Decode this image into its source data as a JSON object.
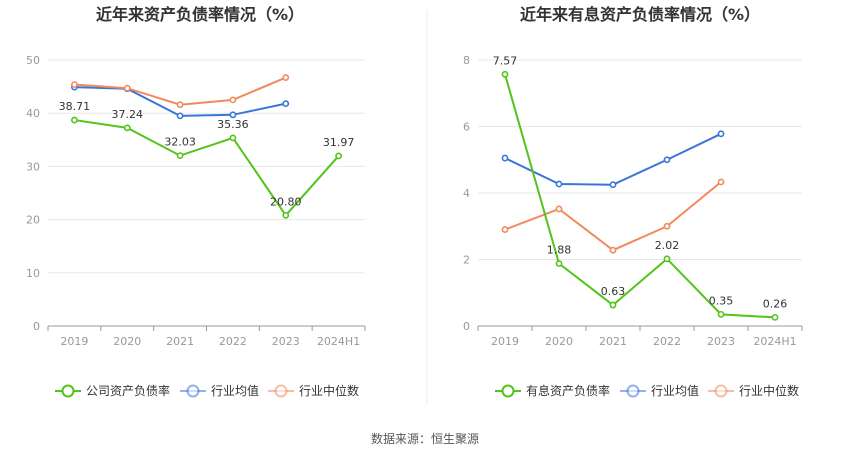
{
  "source_label": "数据来源：恒生聚源",
  "chart_data": [
    {
      "type": "line",
      "title": "近年来资产负债率情况（%）",
      "categories": [
        "2019",
        "2020",
        "2021",
        "2022",
        "2023",
        "2024H1"
      ],
      "ylim": [
        0,
        50
      ],
      "yticks": [
        0,
        10,
        20,
        30,
        40,
        50
      ],
      "grid": true,
      "legend_position": "bottom",
      "series": [
        {
          "name": "公司资产负债率",
          "color": "#52c41a",
          "labeled": true,
          "values": [
            38.71,
            37.24,
            32.03,
            35.36,
            20.8,
            31.97
          ],
          "labels": [
            "38.71",
            "37.24",
            "32.03",
            "35.36",
            "20.80",
            "31.97"
          ]
        },
        {
          "name": "行业均值",
          "color": "#3a75d8",
          "labeled": false,
          "values": [
            44.9,
            44.6,
            39.5,
            39.7,
            41.8,
            null
          ]
        },
        {
          "name": "行业中位数",
          "color": "#f08a5d",
          "labeled": false,
          "values": [
            45.4,
            44.7,
            41.6,
            42.5,
            46.7,
            null
          ]
        }
      ]
    },
    {
      "type": "line",
      "title": "近年来有息资产负债率情况（%）",
      "categories": [
        "2019",
        "2020",
        "2021",
        "2022",
        "2023",
        "2024H1"
      ],
      "ylim": [
        0,
        8
      ],
      "yticks": [
        0,
        2,
        4,
        6,
        8
      ],
      "grid": true,
      "legend_position": "bottom",
      "series": [
        {
          "name": "有息资产负债率",
          "color": "#52c41a",
          "labeled": true,
          "values": [
            7.57,
            1.88,
            0.63,
            2.02,
            0.35,
            0.26
          ],
          "labels": [
            "7.57",
            "1.88",
            "0.63",
            "2.02",
            "0.35",
            "0.26"
          ]
        },
        {
          "name": "行业均值",
          "color": "#3a75d8",
          "labeled": false,
          "values": [
            5.05,
            4.27,
            4.25,
            5.0,
            5.78,
            null
          ]
        },
        {
          "name": "行业中位数",
          "color": "#f08a5d",
          "labeled": false,
          "values": [
            2.9,
            3.52,
            2.28,
            3.0,
            4.33,
            null
          ]
        }
      ]
    }
  ]
}
